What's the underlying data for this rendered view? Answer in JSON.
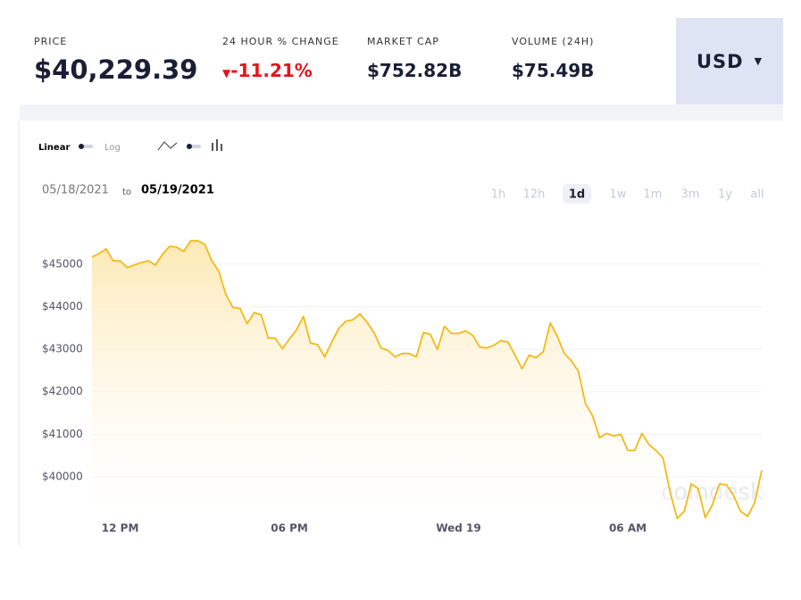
{
  "header": {
    "stats": [
      {
        "label": "PRICE",
        "value": "$40,229.39"
      },
      {
        "label": "24 HOUR % CHANGE",
        "value": "-11.21%"
      },
      {
        "label": "MARKET CAP",
        "value": "$752.82B"
      },
      {
        "label": "VOLUME (24H)",
        "value": "$75.49B"
      }
    ],
    "currency": "USD"
  },
  "controls": {
    "scale": [
      "Linear",
      "Log"
    ],
    "date_range": {
      "from": "05/18/2021",
      "separator": "to",
      "to": "05/19/2021"
    },
    "ranges": [
      "1h",
      "12h",
      "1d",
      "1w",
      "1m",
      "3m",
      "1y",
      "all"
    ],
    "active_range": "1d"
  },
  "watermark": "coindesk",
  "chart_data": {
    "type": "line",
    "color": "#f5b915",
    "grid": true,
    "categories": [
      null,
      null,
      null,
      null,
      "12 PM",
      null,
      null,
      null,
      null,
      null,
      null,
      null,
      null,
      null,
      null,
      null,
      null,
      null,
      null,
      null,
      null,
      null,
      null,
      null,
      null,
      null,
      null,
      null,
      "06 PM",
      null,
      null,
      null,
      null,
      null,
      null,
      null,
      null,
      null,
      null,
      null,
      null,
      null,
      null,
      null,
      null,
      null,
      null,
      null,
      null,
      null,
      null,
      null,
      "Wed 19",
      null,
      null,
      null,
      null,
      null,
      null,
      null,
      null,
      null,
      null,
      null,
      null,
      null,
      null,
      null,
      null,
      null,
      null,
      null,
      null,
      null,
      null,
      null,
      "06 AM",
      null,
      null,
      null,
      null,
      null,
      null,
      null,
      null,
      null,
      null,
      null,
      null,
      null,
      null,
      null,
      null,
      null,
      null,
      null
    ],
    "values": [
      45170,
      45250,
      45360,
      45080,
      45080,
      44920,
      44980,
      45040,
      45080,
      44980,
      45230,
      45420,
      45400,
      45300,
      45550,
      45550,
      45470,
      45080,
      44830,
      44280,
      43980,
      43960,
      43600,
      43860,
      43810,
      43260,
      43260,
      43010,
      43240,
      43450,
      43770,
      43140,
      43110,
      42820,
      43160,
      43490,
      43660,
      43690,
      43830,
      43640,
      43390,
      43030,
      42970,
      42820,
      42900,
      42900,
      42820,
      43390,
      43350,
      42990,
      43540,
      43370,
      43370,
      43430,
      43330,
      43050,
      43030,
      43090,
      43200,
      43170,
      42860,
      42540,
      42860,
      42800,
      42940,
      43620,
      43300,
      42900,
      42730,
      42480,
      41720,
      41440,
      40920,
      41020,
      40960,
      41000,
      40620,
      40620,
      41020,
      40760,
      40620,
      40440,
      39640,
      39020,
      39190,
      39830,
      39720,
      39040,
      39340,
      39830,
      39810,
      39560,
      39190,
      39070,
      39390,
      40150
    ],
    "ylim": [
      38950,
      45900
    ],
    "yticks": [
      {
        "value": 40000,
        "label": "$40000"
      },
      {
        "value": 41000,
        "label": "$41000"
      },
      {
        "value": 42000,
        "label": "$42000"
      },
      {
        "value": 43000,
        "label": "$43000"
      },
      {
        "value": 44000,
        "label": "$44000"
      },
      {
        "value": 45000,
        "label": "$45000"
      }
    ]
  }
}
